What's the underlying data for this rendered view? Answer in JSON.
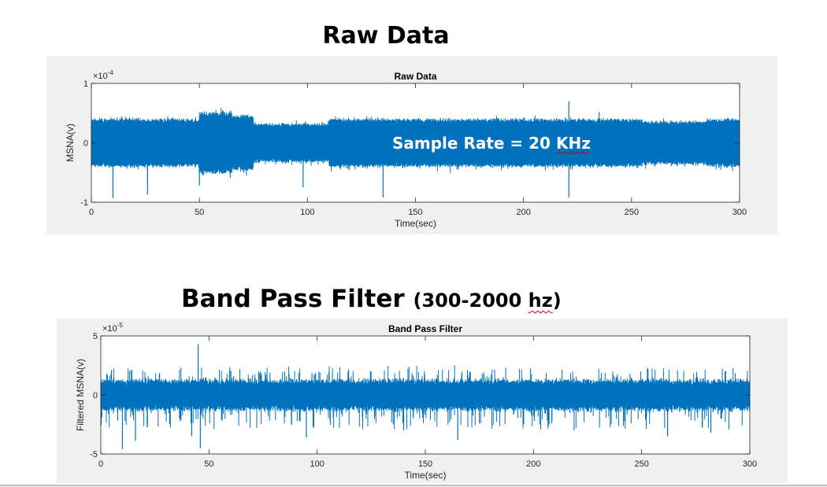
{
  "slide": {
    "title1": "Raw Data",
    "title2_main": "Band Pass Filter ",
    "title2_paren_open": "(300-2000 ",
    "title2_unit": "hz",
    "title2_paren_close": ")",
    "annotation_main": "Sample Rate = 20 ",
    "annotation_unit": "KHz"
  },
  "colors": {
    "series": "#0072BD",
    "figure_bg": "#f0f0f0",
    "axes_bg": "#ffffff"
  },
  "chart_data": [
    {
      "type": "line",
      "title": "Raw Data",
      "xlabel": "Time(sec)",
      "ylabel": "MSNA(v)",
      "exponent": "×10",
      "exponent_power": "-4",
      "xlim": [
        0,
        300
      ],
      "ylim": [
        -1,
        1
      ],
      "xticks": [
        0,
        50,
        100,
        150,
        200,
        250,
        300
      ],
      "yticks": [
        -1,
        0,
        1
      ],
      "grid": false,
      "series": [
        {
          "color": "#0072BD",
          "segments": [
            {
              "x": [
                0,
                50
              ],
              "envelope": 0.4
            },
            {
              "x": [
                50,
                65
              ],
              "envelope": 0.52
            },
            {
              "x": [
                65,
                75
              ],
              "envelope": 0.46
            },
            {
              "x": [
                75,
                110
              ],
              "envelope": 0.32
            },
            {
              "x": [
                110,
                255
              ],
              "envelope": 0.4
            },
            {
              "x": [
                255,
                285
              ],
              "envelope": 0.36
            },
            {
              "x": [
                285,
                300
              ],
              "envelope": 0.4
            }
          ],
          "spikes": [
            {
              "x": 10,
              "y": -0.93
            },
            {
              "x": 26,
              "y": -0.87
            },
            {
              "x": 50,
              "y": -0.72
            },
            {
              "x": 98,
              "y": -0.75
            },
            {
              "x": 135,
              "y": -0.92
            },
            {
              "x": 221,
              "y": -0.92
            },
            {
              "x": 221,
              "y": 0.7
            },
            {
              "x": 235,
              "y": 0.52
            }
          ]
        }
      ]
    },
    {
      "type": "line",
      "title": "Band Pass Filter",
      "xlabel": "Time(sec)",
      "ylabel": "Filtered MSNA(v)",
      "exponent": "×10",
      "exponent_power": "-5",
      "xlim": [
        0,
        300
      ],
      "ylim": [
        -5,
        5
      ],
      "xticks": [
        0,
        50,
        100,
        150,
        200,
        250,
        300
      ],
      "yticks": [
        -5,
        0,
        5
      ],
      "grid": false,
      "series": [
        {
          "color": "#0072BD",
          "envelope": 1.3,
          "spikes": [
            {
              "x": 10,
              "y": -4.6
            },
            {
              "x": 16,
              "y": -3.9
            },
            {
              "x": 42,
              "y": -3.5
            },
            {
              "x": 45,
              "y": 4.3
            },
            {
              "x": 46,
              "y": -4.5
            },
            {
              "x": 95,
              "y": -3.6
            },
            {
              "x": 140,
              "y": -3.0
            },
            {
              "x": 165,
              "y": -3.8
            },
            {
              "x": 262,
              "y": -3.5
            },
            {
              "x": 282,
              "y": -3.2
            }
          ]
        }
      ]
    }
  ]
}
